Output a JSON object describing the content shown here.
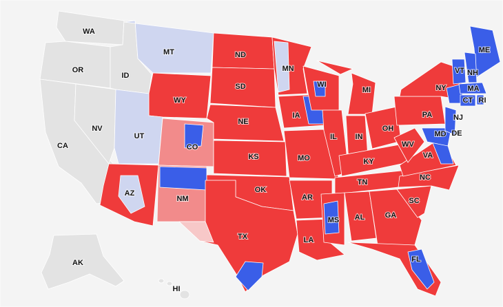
{
  "map": {
    "labels": [
      "WA",
      "MT",
      "ND",
      "MN",
      "ME",
      "VT",
      "NH",
      "OR",
      "ID",
      "WI",
      "MI",
      "NY",
      "MA",
      "WY",
      "SD",
      "CT",
      "RI",
      "PA",
      "NJ",
      "IA",
      "NE",
      "OH",
      "NV",
      "IL",
      "IN",
      "DE",
      "MD",
      "UT",
      "CA",
      "CO",
      "WV",
      "KS",
      "MO",
      "VA",
      "KY",
      "NC",
      "TN",
      "AZ",
      "OK",
      "NM",
      "AR",
      "SC",
      "GA",
      "AL",
      "MS",
      "TX",
      "LA",
      "FL",
      "AK",
      "HI"
    ]
  }
}
